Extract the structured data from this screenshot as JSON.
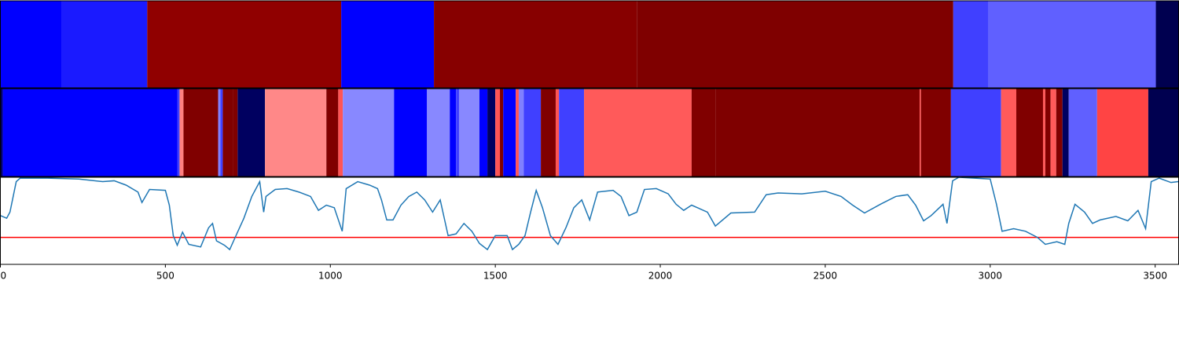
{
  "chart_data": [
    {
      "type": "segments",
      "xlim": [
        0,
        3571
      ],
      "edges": [
        0,
        186,
        445,
        1033,
        1314,
        1929,
        2888,
        2995,
        3502,
        3571
      ],
      "colors": [
        "#0000ff",
        "#1a1aff",
        "#900000",
        "#0000ff",
        "#870000",
        "#7f0000",
        "#4040ff",
        "#6060ff",
        "#000050"
      ]
    },
    {
      "type": "segments",
      "xlim": [
        0,
        3571
      ],
      "edges": [
        0,
        7,
        536,
        543,
        555,
        660,
        667,
        674,
        705,
        719,
        802,
        988,
        1024,
        1038,
        1193,
        1293,
        1362,
        1381,
        1390,
        1452,
        1476,
        1500,
        1514,
        1524,
        1562,
        1571,
        1586,
        1638,
        1683,
        1693,
        1769,
        2095,
        2167,
        2786,
        2790,
        2881,
        3033,
        3079,
        3160,
        3167,
        3183,
        3200,
        3219,
        3238,
        3324,
        3479,
        3571
      ],
      "colors": [
        "#000060",
        "#0000ff",
        "#4040ff",
        "#ff8080",
        "#800000",
        "#8080ff",
        "#4040ff",
        "#800000",
        "#800000",
        "#000060",
        "#ff8888",
        "#800000",
        "#ff5555",
        "#8888ff",
        "#0000ff",
        "#8888ff",
        "#0000ff",
        "#4040ff",
        "#8888ff",
        "#0000ff",
        "#000060",
        "#ff5555",
        "#800000",
        "#0000ff",
        "#ff5555",
        "#8080ff",
        "#4040ff",
        "#800000",
        "#ff5555",
        "#4040ff",
        "#ff5a5a",
        "#800000",
        "#7f0000",
        "#ff5a5a",
        "#800000",
        "#4040ff",
        "#ff5a5a",
        "#800000",
        "#ff5a5a",
        "#800000",
        "#ff5a5a",
        "#800000",
        "#000060",
        "#6060ff",
        "#ff4444",
        "#000050"
      ]
    },
    {
      "type": "line",
      "xlim": [
        0,
        3571
      ],
      "ylim": [
        0,
        1
      ],
      "color": "#1f77b4",
      "hline": 0.31,
      "hline_color": "#ff0000",
      "xticks": [
        0,
        500,
        1000,
        1500,
        2000,
        2500,
        3000,
        3500
      ],
      "x": [
        0,
        19,
        29,
        48,
        60,
        143,
        238,
        310,
        345,
        381,
        417,
        429,
        452,
        500,
        512,
        524,
        536,
        552,
        571,
        607,
        631,
        643,
        655,
        679,
        695,
        714,
        738,
        762,
        786,
        798,
        805,
        833,
        869,
        905,
        940,
        964,
        988,
        1012,
        1036,
        1048,
        1083,
        1119,
        1143,
        1155,
        1171,
        1190,
        1214,
        1238,
        1262,
        1286,
        1310,
        1333,
        1357,
        1381,
        1405,
        1429,
        1452,
        1476,
        1500,
        1536,
        1552,
        1571,
        1590,
        1607,
        1624,
        1643,
        1667,
        1690,
        1714,
        1738,
        1762,
        1786,
        1810,
        1857,
        1881,
        1905,
        1929,
        1952,
        1988,
        2024,
        2048,
        2071,
        2095,
        2143,
        2167,
        2214,
        2286,
        2321,
        2357,
        2429,
        2500,
        2548,
        2583,
        2619,
        2667,
        2714,
        2750,
        2774,
        2798,
        2821,
        2857,
        2869,
        2886,
        2905,
        3000,
        3019,
        3036,
        3071,
        3107,
        3143,
        3167,
        3202,
        3226,
        3238,
        3257,
        3286,
        3310,
        3333,
        3381,
        3417,
        3448,
        3471,
        3488,
        3512,
        3548,
        3570
      ],
      "y": [
        0.56,
        0.53,
        0.6,
        0.95,
        0.99,
        0.99,
        0.98,
        0.95,
        0.96,
        0.91,
        0.83,
        0.71,
        0.86,
        0.85,
        0.68,
        0.33,
        0.22,
        0.37,
        0.23,
        0.2,
        0.42,
        0.47,
        0.27,
        0.22,
        0.17,
        0.33,
        0.53,
        0.78,
        0.95,
        0.6,
        0.78,
        0.86,
        0.87,
        0.83,
        0.78,
        0.62,
        0.68,
        0.65,
        0.38,
        0.87,
        0.95,
        0.91,
        0.87,
        0.74,
        0.51,
        0.51,
        0.68,
        0.78,
        0.83,
        0.74,
        0.6,
        0.74,
        0.33,
        0.35,
        0.47,
        0.38,
        0.24,
        0.17,
        0.33,
        0.33,
        0.17,
        0.23,
        0.33,
        0.6,
        0.85,
        0.65,
        0.33,
        0.23,
        0.42,
        0.65,
        0.74,
        0.51,
        0.83,
        0.85,
        0.78,
        0.56,
        0.6,
        0.86,
        0.87,
        0.81,
        0.69,
        0.62,
        0.68,
        0.6,
        0.44,
        0.59,
        0.6,
        0.8,
        0.82,
        0.81,
        0.84,
        0.78,
        0.68,
        0.59,
        0.69,
        0.78,
        0.8,
        0.68,
        0.5,
        0.56,
        0.69,
        0.47,
        0.96,
        1.0,
        0.98,
        0.69,
        0.38,
        0.41,
        0.38,
        0.31,
        0.23,
        0.26,
        0.23,
        0.47,
        0.69,
        0.6,
        0.47,
        0.51,
        0.55,
        0.5,
        0.62,
        0.41,
        0.95,
        0.99,
        0.94,
        0.95
      ]
    }
  ]
}
